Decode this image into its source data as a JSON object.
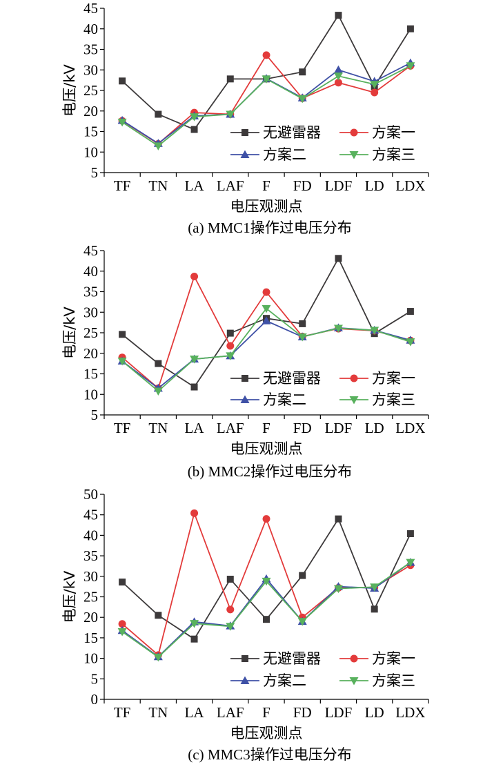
{
  "series_styles": [
    {
      "color": "#3d3a3b",
      "marker": "square"
    },
    {
      "color": "#e33b3b",
      "marker": "circle"
    },
    {
      "color": "#3f51a6",
      "marker": "triangle-up"
    },
    {
      "color": "#58b15d",
      "marker": "triangle-down"
    }
  ],
  "chart_data": [
    {
      "type": "line",
      "title": "(a)  MMC1操作过电压分布",
      "xlabel": "电压观测点",
      "ylabel": "电压/kV",
      "ylim": [
        5,
        45
      ],
      "yticks": [
        5,
        10,
        15,
        20,
        25,
        30,
        35,
        40,
        45
      ],
      "grid": false,
      "legend_position": "bottom-right",
      "categories": [
        "TF",
        "TN",
        "LA",
        "LAF",
        "F",
        "FD",
        "LDF",
        "LD",
        "LDX"
      ],
      "series": [
        {
          "name": "无避雷器",
          "values": [
            27.3,
            19.2,
            15.5,
            27.8,
            27.8,
            29.5,
            43.3,
            26.0,
            40.0
          ]
        },
        {
          "name": "方案一",
          "values": [
            17.6,
            12.0,
            19.6,
            19.2,
            33.6,
            23.1,
            26.9,
            24.5,
            31.0
          ]
        },
        {
          "name": "方案二",
          "values": [
            17.7,
            12.1,
            18.8,
            19.2,
            27.9,
            23.2,
            30.0,
            27.2,
            31.7
          ]
        },
        {
          "name": "方案三",
          "values": [
            17.3,
            11.5,
            18.6,
            19.2,
            27.8,
            23.0,
            28.5,
            26.5,
            31.0
          ]
        }
      ]
    },
    {
      "type": "line",
      "title": "(b)  MMC2操作过电压分布",
      "xlabel": "电压观测点",
      "ylabel": "电压/kV",
      "ylim": [
        5,
        45
      ],
      "yticks": [
        5,
        10,
        15,
        20,
        25,
        30,
        35,
        40,
        45
      ],
      "grid": false,
      "legend_position": "bottom-right",
      "categories": [
        "TF",
        "TN",
        "LA",
        "LAF",
        "F",
        "FD",
        "LDF",
        "LD",
        "LDX"
      ],
      "series": [
        {
          "name": "无避雷器",
          "values": [
            24.6,
            17.5,
            11.8,
            24.9,
            28.5,
            27.2,
            43.1,
            24.8,
            30.2
          ]
        },
        {
          "name": "方案一",
          "values": [
            19.0,
            11.5,
            38.7,
            21.8,
            34.9,
            24.1,
            26.0,
            25.5,
            23.1
          ]
        },
        {
          "name": "方案二",
          "values": [
            18.1,
            11.5,
            18.6,
            19.4,
            27.9,
            24.0,
            26.2,
            25.6,
            23.2
          ]
        },
        {
          "name": "方案三",
          "values": [
            18.1,
            10.8,
            18.6,
            19.4,
            30.9,
            24.0,
            26.1,
            25.6,
            22.8
          ]
        }
      ]
    },
    {
      "type": "line",
      "title": "(c)  MMC3操作过电压分布",
      "xlabel": "电压观测点",
      "ylabel": "电压/kV",
      "ylim": [
        0,
        50
      ],
      "yticks": [
        0,
        5,
        10,
        15,
        20,
        25,
        30,
        35,
        40,
        45,
        50
      ],
      "grid": false,
      "legend_position": "bottom-right",
      "categories": [
        "TF",
        "TN",
        "LA",
        "LAF",
        "F",
        "FD",
        "LDF",
        "LD",
        "LDX"
      ],
      "series": [
        {
          "name": "无避雷器",
          "values": [
            28.6,
            20.5,
            14.7,
            29.3,
            19.5,
            30.2,
            44.0,
            22.0,
            40.4
          ]
        },
        {
          "name": "方案一",
          "values": [
            18.4,
            10.8,
            45.4,
            21.9,
            44.0,
            20.0,
            27.2,
            27.3,
            32.7
          ]
        },
        {
          "name": "方案二",
          "values": [
            16.8,
            10.4,
            18.9,
            17.9,
            29.4,
            19.0,
            27.5,
            27.1,
            33.4
          ]
        },
        {
          "name": "方案三",
          "values": [
            16.5,
            10.3,
            18.5,
            17.8,
            28.8,
            19.0,
            27.0,
            27.4,
            33.4
          ]
        }
      ]
    }
  ]
}
